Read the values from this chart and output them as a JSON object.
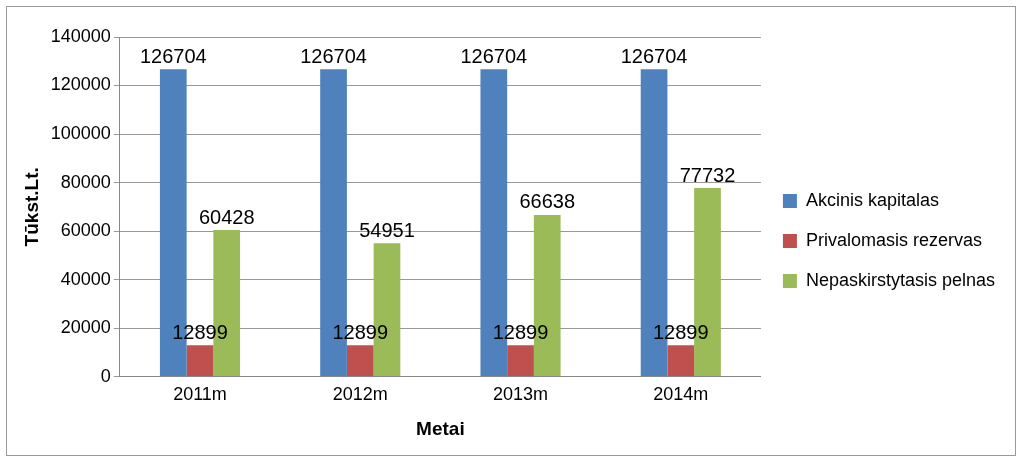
{
  "chart_data": {
    "type": "bar",
    "xlabel": "Metai",
    "ylabel": "Tūkst.Lt.",
    "categories": [
      "2011m",
      "2012m",
      "2013m",
      "2014m"
    ],
    "series": [
      {
        "name": "Akcinis kapitalas",
        "color": "#4f81bd",
        "values": [
          126704,
          126704,
          126704,
          126704
        ]
      },
      {
        "name": "Privalomasis rezervas",
        "color": "#c0504d",
        "values": [
          12899,
          12899,
          12899,
          12899
        ]
      },
      {
        "name": "Nepaskirstytasis pelnas",
        "color": "#9bbb59",
        "values": [
          60428,
          54951,
          66638,
          77732
        ]
      }
    ],
    "ylim": [
      0,
      140000
    ],
    "yticks": [
      0,
      20000,
      40000,
      60000,
      80000,
      100000,
      120000,
      140000
    ],
    "grid": "y",
    "legend": "right",
    "data_labels": true
  }
}
